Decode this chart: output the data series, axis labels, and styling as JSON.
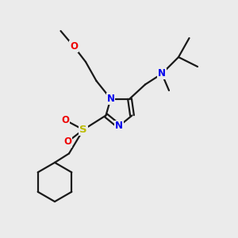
{
  "bg_color": "#ebebeb",
  "bond_color": "#1a1a1a",
  "N_color": "#0000ee",
  "O_color": "#ee0000",
  "S_color": "#bbbb00",
  "line_width": 1.6,
  "font_size": 8.5,
  "figsize": [
    3.0,
    3.0
  ],
  "dpi": 100,
  "xlim": [
    0,
    10
  ],
  "ylim": [
    0,
    10
  ]
}
